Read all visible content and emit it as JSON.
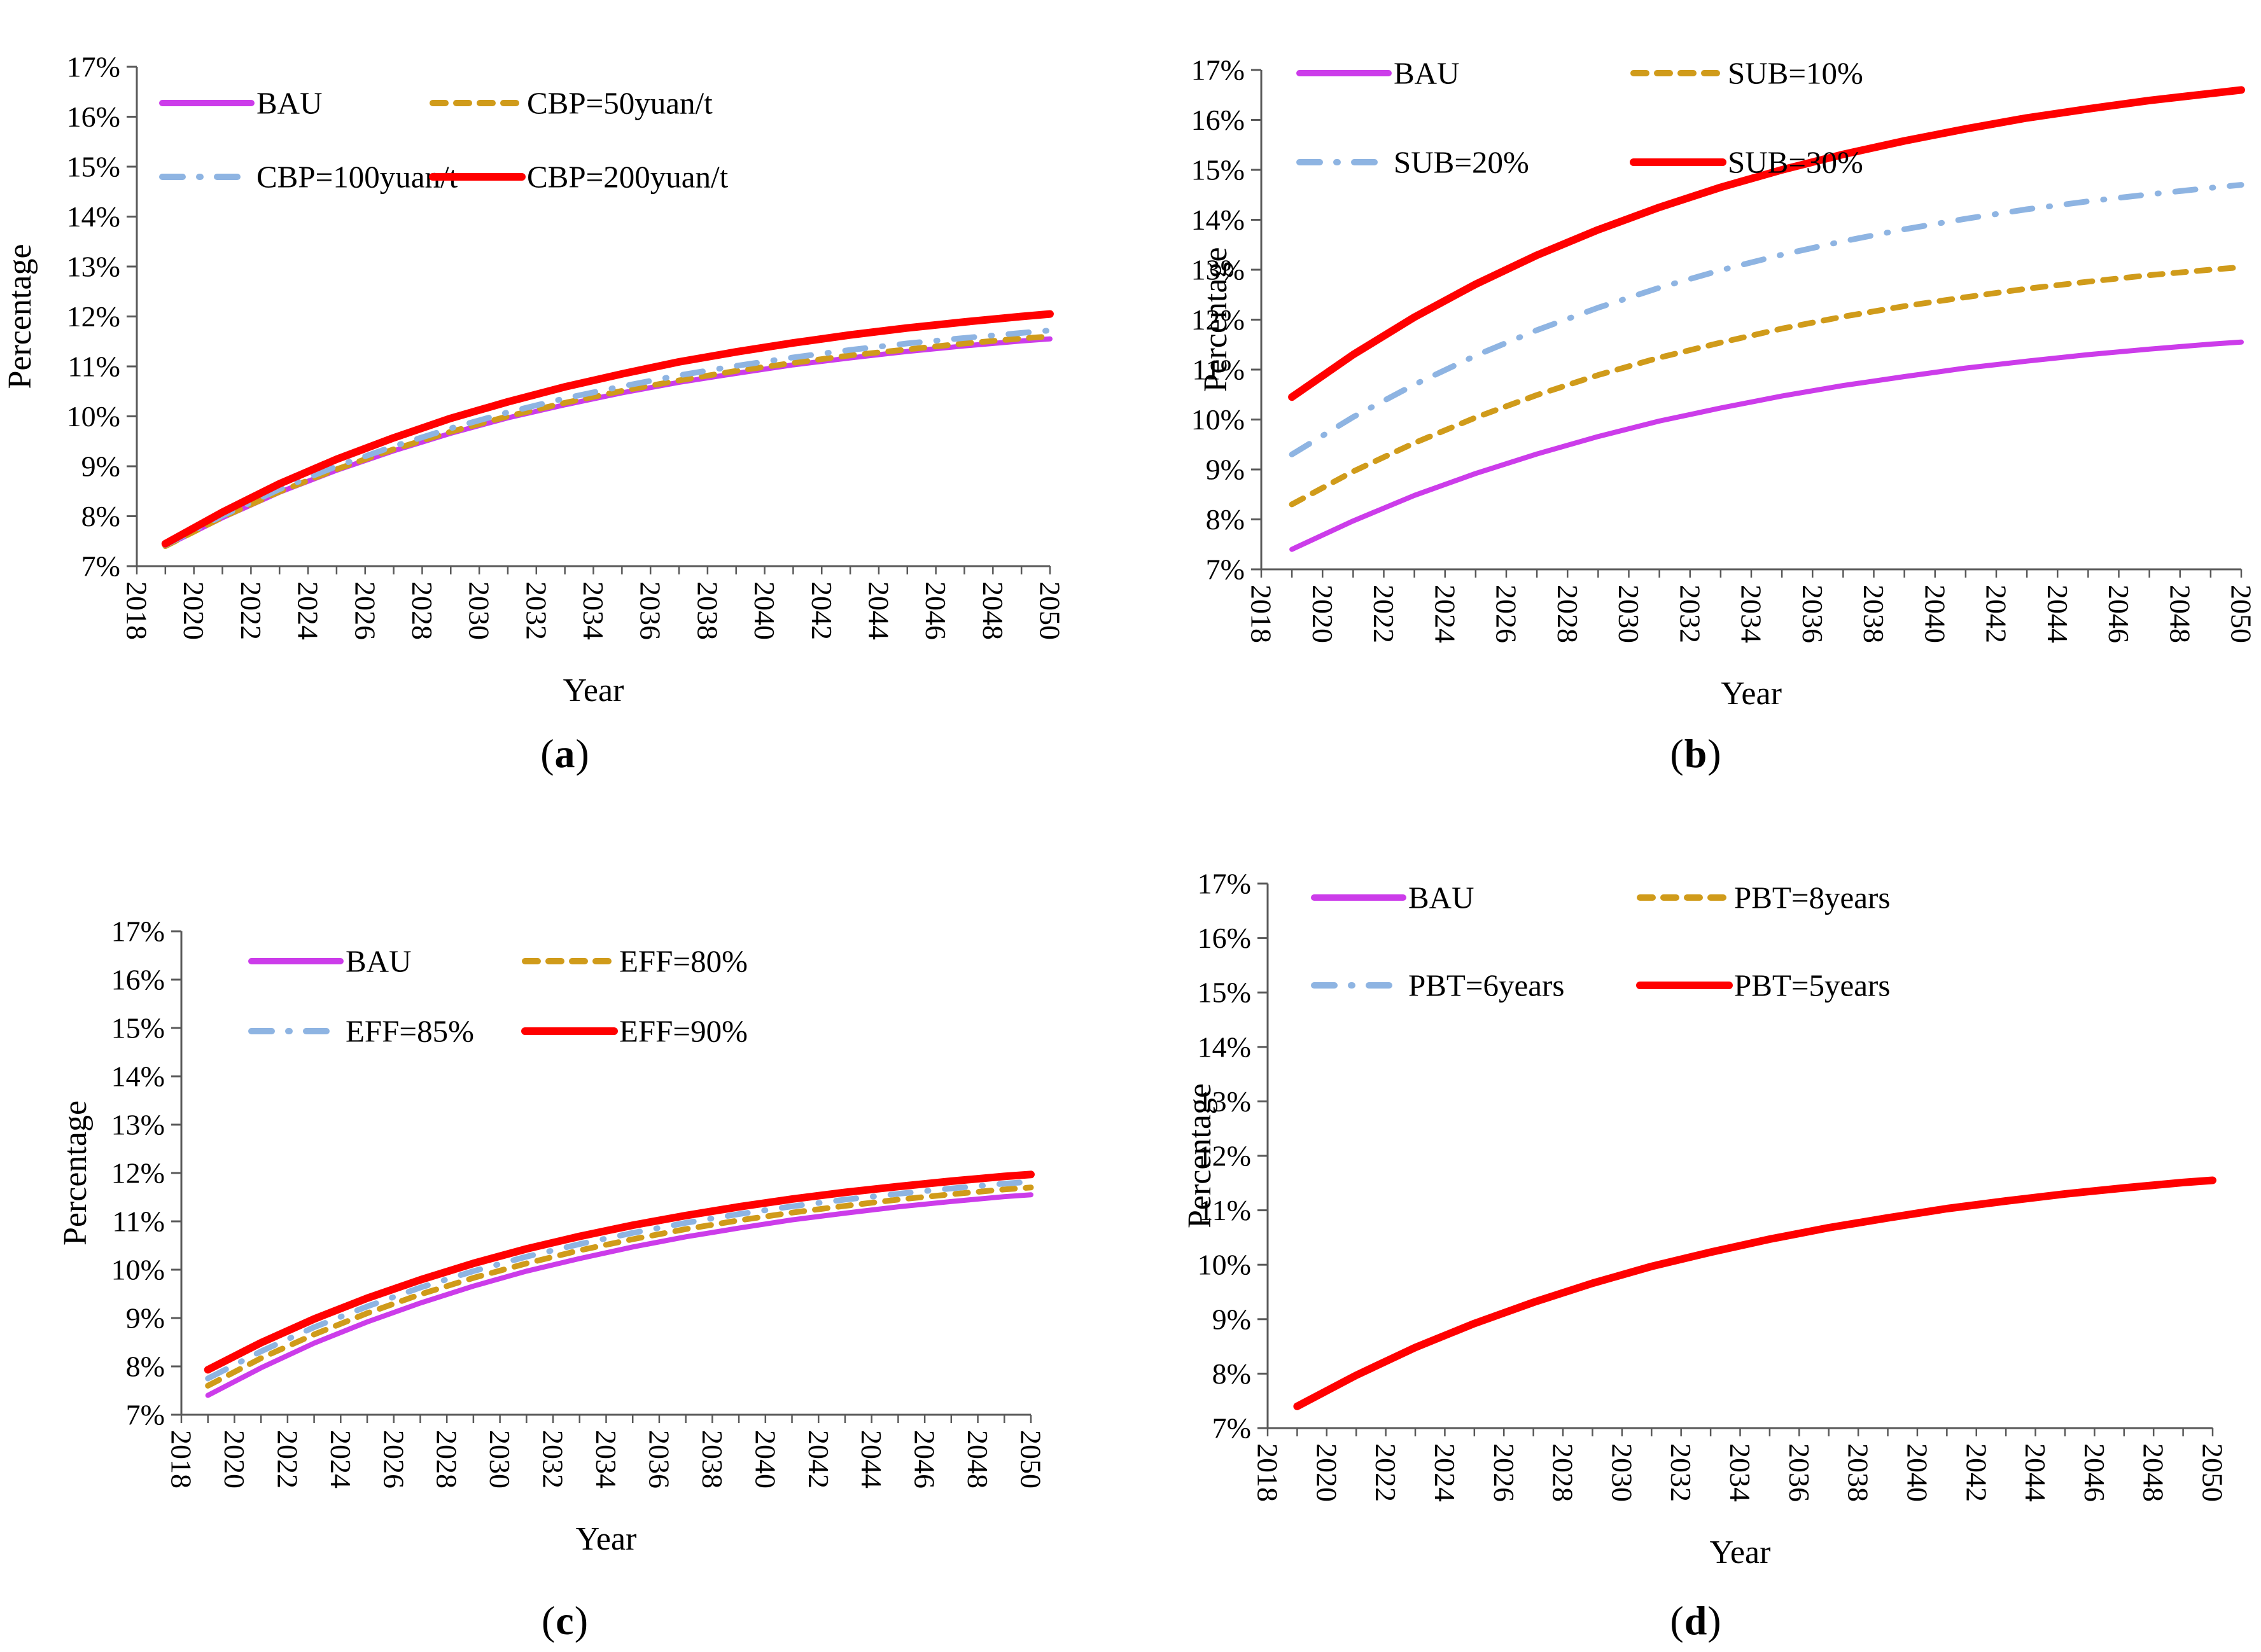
{
  "figure": {
    "background": "#ffffff",
    "axis_color": "#595959",
    "text_color": "#000000"
  },
  "chart_data": [
    {
      "panel": "a",
      "type": "line",
      "caption": {
        "open": "(",
        "letter": "a",
        "close": ")"
      },
      "xlabel": "Year",
      "ylabel": "Percentage",
      "xlim": [
        2018,
        2050
      ],
      "ylim_percent": [
        7,
        17
      ],
      "x_ticks": [
        2018,
        2020,
        2022,
        2024,
        2026,
        2028,
        2030,
        2032,
        2034,
        2036,
        2038,
        2040,
        2042,
        2044,
        2046,
        2048,
        2050
      ],
      "y_ticks": [
        "7%",
        "8%",
        "9%",
        "10%",
        "11%",
        "12%",
        "13%",
        "14%",
        "15%",
        "16%",
        "17%"
      ],
      "legend_position": "top-inside-two-columns",
      "grid": false,
      "x": [
        2019,
        2021,
        2023,
        2025,
        2027,
        2029,
        2031,
        2033,
        2035,
        2037,
        2039,
        2041,
        2043,
        2045,
        2047,
        2049,
        2050
      ],
      "series": [
        {
          "name": "BAU",
          "color": "#CC3CEA",
          "dash": "solid",
          "width": 8,
          "values": [
            7.4,
            7.97,
            8.48,
            8.92,
            9.31,
            9.66,
            9.97,
            10.23,
            10.47,
            10.68,
            10.86,
            11.03,
            11.17,
            11.3,
            11.41,
            11.51,
            11.55
          ]
        },
        {
          "name": "CBP=50yuan/t",
          "color": "#D09B1A",
          "dash": "dashed",
          "width": 9,
          "values": [
            7.4,
            7.98,
            8.49,
            8.94,
            9.34,
            9.69,
            10.0,
            10.27,
            10.51,
            10.72,
            10.91,
            11.07,
            11.22,
            11.34,
            11.46,
            11.56,
            11.6
          ]
        },
        {
          "name": "CBP=100yuan/t",
          "color": "#8EB4E2",
          "dash": "dashdot",
          "width": 9,
          "values": [
            7.42,
            8.01,
            8.54,
            9.0,
            9.4,
            9.76,
            10.08,
            10.36,
            10.6,
            10.82,
            11.01,
            11.18,
            11.33,
            11.46,
            11.57,
            11.67,
            11.72
          ]
        },
        {
          "name": "CBP=200yuan/t",
          "color": "#FF0000",
          "dash": "solid",
          "width": 12,
          "values": [
            7.45,
            8.08,
            8.65,
            9.14,
            9.57,
            9.96,
            10.29,
            10.59,
            10.85,
            11.09,
            11.29,
            11.47,
            11.63,
            11.77,
            11.89,
            12.0,
            12.05
          ]
        }
      ]
    },
    {
      "panel": "b",
      "type": "line",
      "caption": {
        "open": "(",
        "letter": "b",
        "close": ")"
      },
      "xlabel": "Year",
      "ylabel": "Percentage",
      "xlim": [
        2018,
        2050
      ],
      "ylim_percent": [
        7,
        17
      ],
      "x_ticks": [
        2018,
        2020,
        2022,
        2024,
        2026,
        2028,
        2030,
        2032,
        2034,
        2036,
        2038,
        2040,
        2042,
        2044,
        2046,
        2048,
        2050
      ],
      "y_ticks": [
        "7%",
        "8%",
        "9%",
        "10%",
        "11%",
        "12%",
        "13%",
        "14%",
        "15%",
        "16%",
        "17%"
      ],
      "legend_position": "top-inside-two-columns",
      "grid": false,
      "x": [
        2019,
        2021,
        2023,
        2025,
        2027,
        2029,
        2031,
        2033,
        2035,
        2037,
        2039,
        2041,
        2043,
        2045,
        2047,
        2049,
        2050
      ],
      "series": [
        {
          "name": "BAU",
          "color": "#CC3CEA",
          "dash": "solid",
          "width": 8,
          "values": [
            7.4,
            7.97,
            8.48,
            8.92,
            9.31,
            9.66,
            9.97,
            10.23,
            10.47,
            10.68,
            10.86,
            11.03,
            11.17,
            11.3,
            11.41,
            11.51,
            11.55
          ]
        },
        {
          "name": "SUB=10%",
          "color": "#D09B1A",
          "dash": "dashed",
          "width": 9,
          "values": [
            8.3,
            8.96,
            9.53,
            10.04,
            10.49,
            10.89,
            11.24,
            11.54,
            11.82,
            12.06,
            12.27,
            12.45,
            12.62,
            12.76,
            12.89,
            13.0,
            13.05
          ]
        },
        {
          "name": "SUB=20%",
          "color": "#8EB4E2",
          "dash": "dashdot",
          "width": 9,
          "values": [
            9.3,
            10.05,
            10.7,
            11.28,
            11.79,
            12.24,
            12.64,
            12.99,
            13.3,
            13.57,
            13.81,
            14.02,
            14.21,
            14.37,
            14.51,
            14.64,
            14.7
          ]
        },
        {
          "name": "SUB=30%",
          "color": "#FF0000",
          "dash": "solid",
          "width": 12,
          "values": [
            10.45,
            11.3,
            12.05,
            12.71,
            13.29,
            13.8,
            14.25,
            14.65,
            15.0,
            15.31,
            15.58,
            15.82,
            16.04,
            16.22,
            16.39,
            16.53,
            16.6
          ]
        }
      ]
    },
    {
      "panel": "c",
      "type": "line",
      "caption": {
        "open": "(",
        "letter": "c",
        "close": ")"
      },
      "xlabel": "Year",
      "ylabel": "Percentage",
      "xlim": [
        2018,
        2050
      ],
      "ylim_percent": [
        7,
        17
      ],
      "x_ticks": [
        2018,
        2020,
        2022,
        2024,
        2026,
        2028,
        2030,
        2032,
        2034,
        2036,
        2038,
        2040,
        2042,
        2044,
        2046,
        2048,
        2050
      ],
      "y_ticks": [
        "7%",
        "8%",
        "9%",
        "10%",
        "11%",
        "12%",
        "13%",
        "14%",
        "15%",
        "16%",
        "17%"
      ],
      "legend_position": "top-inside-two-columns",
      "grid": false,
      "x": [
        2019,
        2021,
        2023,
        2025,
        2027,
        2029,
        2031,
        2033,
        2035,
        2037,
        2039,
        2041,
        2043,
        2045,
        2047,
        2049,
        2050
      ],
      "series": [
        {
          "name": "BAU",
          "color": "#CC3CEA",
          "dash": "solid",
          "width": 8,
          "values": [
            7.4,
            7.97,
            8.48,
            8.92,
            9.31,
            9.66,
            9.97,
            10.23,
            10.47,
            10.68,
            10.86,
            11.03,
            11.17,
            11.3,
            11.41,
            11.51,
            11.55
          ]
        },
        {
          "name": "EFF=80%",
          "color": "#D09B1A",
          "dash": "dashed",
          "width": 9,
          "values": [
            7.6,
            8.17,
            8.66,
            9.1,
            9.49,
            9.83,
            10.13,
            10.4,
            10.63,
            10.84,
            11.02,
            11.18,
            11.32,
            11.45,
            11.56,
            11.66,
            11.7
          ]
        },
        {
          "name": "EFF=85%",
          "color": "#8EB4E2",
          "dash": "dashdot",
          "width": 9,
          "values": [
            7.75,
            8.31,
            8.81,
            9.24,
            9.63,
            9.97,
            10.27,
            10.53,
            10.76,
            10.97,
            11.15,
            11.31,
            11.45,
            11.57,
            11.68,
            11.78,
            11.82
          ]
        },
        {
          "name": "EFF=90%",
          "color": "#FF0000",
          "dash": "solid",
          "width": 12,
          "values": [
            7.93,
            8.49,
            8.98,
            9.41,
            9.79,
            10.13,
            10.43,
            10.69,
            10.92,
            11.12,
            11.3,
            11.46,
            11.6,
            11.72,
            11.83,
            11.93,
            11.97
          ]
        }
      ]
    },
    {
      "panel": "d",
      "type": "line",
      "caption": {
        "open": "(",
        "letter": "d",
        "close": ")"
      },
      "xlabel": "Year",
      "ylabel": "Percentage",
      "xlim": [
        2018,
        2050
      ],
      "ylim_percent": [
        7,
        17
      ],
      "x_ticks": [
        2018,
        2020,
        2022,
        2024,
        2026,
        2028,
        2030,
        2032,
        2034,
        2036,
        2038,
        2040,
        2042,
        2044,
        2046,
        2048,
        2050
      ],
      "y_ticks": [
        "7%",
        "8%",
        "9%",
        "10%",
        "11%",
        "12%",
        "13%",
        "14%",
        "15%",
        "16%",
        "17%"
      ],
      "legend_position": "top-inside-two-columns",
      "grid": false,
      "note": "All four series coincide; only the red PBT=5years curve is visible on top.",
      "x": [
        2019,
        2021,
        2023,
        2025,
        2027,
        2029,
        2031,
        2033,
        2035,
        2037,
        2039,
        2041,
        2043,
        2045,
        2047,
        2049,
        2050
      ],
      "series": [
        {
          "name": "BAU",
          "color": "#CC3CEA",
          "dash": "solid",
          "width": 8,
          "values": [
            7.4,
            7.97,
            8.48,
            8.92,
            9.31,
            9.66,
            9.97,
            10.23,
            10.47,
            10.68,
            10.86,
            11.03,
            11.17,
            11.3,
            11.41,
            11.51,
            11.55
          ]
        },
        {
          "name": "PBT=8years",
          "color": "#D09B1A",
          "dash": "dashed",
          "width": 9,
          "values": [
            7.4,
            7.97,
            8.48,
            8.92,
            9.31,
            9.66,
            9.97,
            10.23,
            10.47,
            10.68,
            10.86,
            11.03,
            11.17,
            11.3,
            11.41,
            11.51,
            11.55
          ]
        },
        {
          "name": "PBT=6years",
          "color": "#8EB4E2",
          "dash": "dashdot",
          "width": 9,
          "values": [
            7.4,
            7.97,
            8.48,
            8.92,
            9.31,
            9.66,
            9.97,
            10.23,
            10.47,
            10.68,
            10.86,
            11.03,
            11.17,
            11.3,
            11.41,
            11.51,
            11.55
          ]
        },
        {
          "name": "PBT=5years",
          "color": "#FF0000",
          "dash": "solid",
          "width": 12,
          "values": [
            7.4,
            7.97,
            8.48,
            8.92,
            9.31,
            9.66,
            9.97,
            10.23,
            10.47,
            10.68,
            10.86,
            11.03,
            11.17,
            11.3,
            11.41,
            11.51,
            11.55
          ]
        }
      ]
    }
  ]
}
